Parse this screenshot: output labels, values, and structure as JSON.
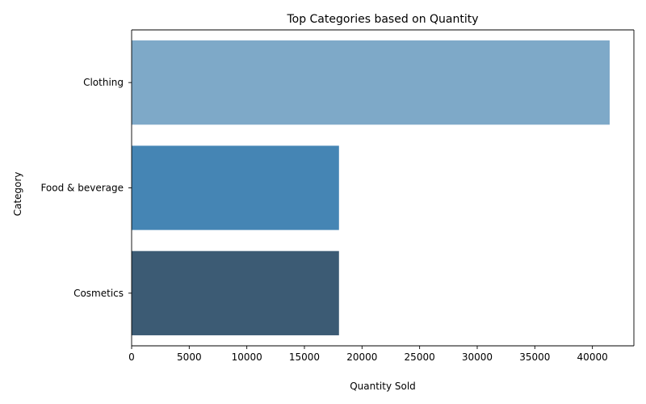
{
  "chart_data": {
    "type": "bar",
    "orientation": "horizontal",
    "title": "Top Categories based on Quantity",
    "xlabel": "Quantity Sold",
    "ylabel": "Category",
    "categories": [
      "Clothing",
      "Food & beverage",
      "Cosmetics"
    ],
    "values": [
      41500,
      18000,
      18000
    ],
    "colors": [
      "#7ea9c8",
      "#4585b4",
      "#3c5b74"
    ],
    "xlim": [
      0,
      43600
    ],
    "xticks": [
      0,
      5000,
      10000,
      15000,
      20000,
      25000,
      30000,
      35000,
      40000
    ],
    "grid": false,
    "legend": "none"
  }
}
